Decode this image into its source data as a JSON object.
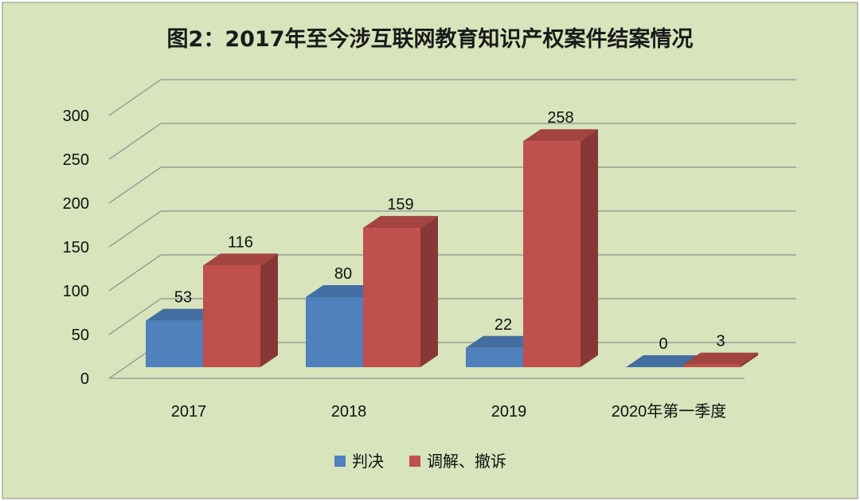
{
  "chart_data": {
    "type": "bar",
    "title": "图2：2017年至今涉互联网教育知识产权案件结案情况",
    "categories": [
      "2017",
      "2018",
      "2019",
      "2020年第一季度"
    ],
    "series": [
      {
        "name": "判决",
        "values": [
          53,
          80,
          22,
          0
        ]
      },
      {
        "name": "调解、撤诉",
        "values": [
          116,
          159,
          258,
          3
        ]
      }
    ],
    "ylim": [
      0,
      300
    ],
    "yticks": [
      0,
      50,
      100,
      150,
      200,
      250,
      300
    ],
    "grid": true,
    "legend": "bottom",
    "three_d": true,
    "colors": {
      "background": "#d7e4bc",
      "series": [
        "#4f81bd",
        "#c0504d"
      ]
    }
  }
}
